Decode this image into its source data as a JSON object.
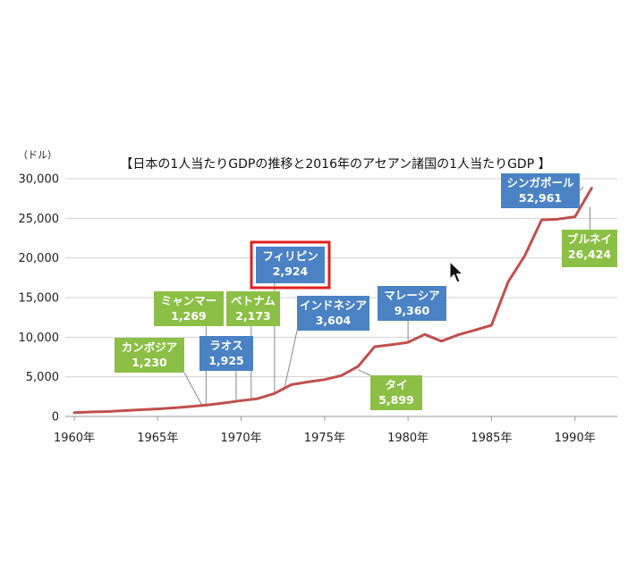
{
  "chart_data": {
    "type": "line",
    "title": "【日本の1人当たりGDPの推移と2016年のアセアン諸国の1人当たりGDP 】",
    "ylabel": "（ドル）",
    "xlabel": "",
    "ylim": [
      0,
      30000
    ],
    "xlim": [
      1960,
      1992
    ],
    "grid": "horizontal",
    "y_ticks": [
      {
        "value": 0,
        "label": "0"
      },
      {
        "value": 5000,
        "label": "5,000"
      },
      {
        "value": 10000,
        "label": "10,000"
      },
      {
        "value": 15000,
        "label": "15,000"
      },
      {
        "value": 20000,
        "label": "20,000"
      },
      {
        "value": 25000,
        "label": "25,000"
      },
      {
        "value": 30000,
        "label": "30,000"
      }
    ],
    "x_ticks": [
      {
        "value": 1960,
        "label": "1960年"
      },
      {
        "value": 1965,
        "label": "1965年"
      },
      {
        "value": 1970,
        "label": "1970年"
      },
      {
        "value": 1975,
        "label": "1975年"
      },
      {
        "value": 1980,
        "label": "1980年"
      },
      {
        "value": 1985,
        "label": "1985年"
      },
      {
        "value": 1990,
        "label": "1990年"
      }
    ],
    "series": [
      {
        "color": "#c0504d",
        "x": [
          1960,
          1961,
          1962,
          1963,
          1964,
          1965,
          1966,
          1967,
          1968,
          1969,
          1970,
          1971,
          1972,
          1973,
          1974,
          1975,
          1976,
          1977,
          1978,
          1979,
          1980,
          1981,
          1982,
          1983,
          1984,
          1985,
          1986,
          1987,
          1988,
          1989,
          1990,
          1991
        ],
        "y": [
          480,
          560,
          620,
          730,
          850,
          950,
          1080,
          1250,
          1450,
          1700,
          2000,
          2250,
          2900,
          4000,
          4350,
          4650,
          5150,
          6300,
          8800,
          9050,
          9350,
          10350,
          9500,
          10300,
          10900,
          11500,
          17000,
          20300,
          24800,
          24900,
          25200,
          28800
        ]
      }
    ],
    "annotations": [
      {
        "label": "カンボジア",
        "value": "1,230",
        "color": "#8cbf45",
        "x": 1967.7,
        "y": 1230,
        "highlight": false
      },
      {
        "label": "ミャンマー",
        "value": "1,269",
        "color": "#8cbf45",
        "x": 1967.9,
        "y": 1269,
        "highlight": false
      },
      {
        "label": "ラオス",
        "value": "1,925",
        "color": "#4a82c4",
        "x": 1969.7,
        "y": 1925,
        "highlight": false
      },
      {
        "label": "ベトナム",
        "value": "2,173",
        "color": "#8cbf45",
        "x": 1970.6,
        "y": 2173,
        "highlight": false
      },
      {
        "label": "フィリピン",
        "value": "2,924",
        "color": "#4a82c4",
        "x": 1972.0,
        "y": 2924,
        "highlight": true
      },
      {
        "label": "インドネシア",
        "value": "3,604",
        "color": "#4a82c4",
        "x": 1972.6,
        "y": 3604,
        "highlight": false
      },
      {
        "label": "タイ",
        "value": "5,899",
        "color": "#8cbf45",
        "x": 1977.0,
        "y": 5899,
        "highlight": false
      },
      {
        "label": "マレーシア",
        "value": "9,360",
        "color": "#4a82c4",
        "x": 1980.0,
        "y": 9360,
        "highlight": false
      },
      {
        "label": "シンガポール",
        "value": "52,961",
        "color": "#4a82c4",
        "x": 1990.5,
        "y": 29000,
        "highlight": false
      },
      {
        "label": "ブルネイ",
        "value": "26,424",
        "color": "#8cbf45",
        "x": 1990.9,
        "y": 26424,
        "highlight": false
      }
    ],
    "highlight_color": "#e02020"
  }
}
